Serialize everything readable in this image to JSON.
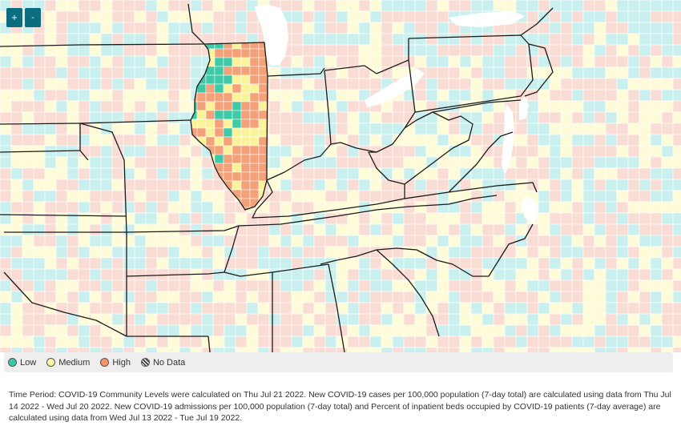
{
  "zoom": {
    "in_label": "+",
    "out_label": "-"
  },
  "legend": {
    "items": [
      {
        "label": "Low",
        "color": "#3cc8a8"
      },
      {
        "label": "Medium",
        "color": "#fbf6a8"
      },
      {
        "label": "High",
        "color": "#f4936b"
      },
      {
        "label": "No Data",
        "color": "hatch"
      }
    ]
  },
  "colors": {
    "low": "#c9f0ee",
    "medium": "#fdfbd8",
    "high": "#f9ddd5",
    "il_low": "#3fcaa7",
    "il_medium": "#fbf39a",
    "il_high": "#f3a179",
    "lake": "#ffffff",
    "state_border": "#1a1a1a",
    "county_border": "#ffffff"
  },
  "footer": {
    "text": "Time Period: COVID-19 Community Levels were calculated on Thu Jul 21 2022. New COVID-19 cases per 100,000 population (7-day total) are calculated using data from Thu Jul 14 2022 - Wed Jul 20 2022. New COVID-19 admissions per 100,000 population (7-day total) and Percent of inpatient beds occupied by COVID-19 patients (7-day average) are calculated using data from Wed Jul 13 2022 - Tue Jul 19 2022."
  }
}
